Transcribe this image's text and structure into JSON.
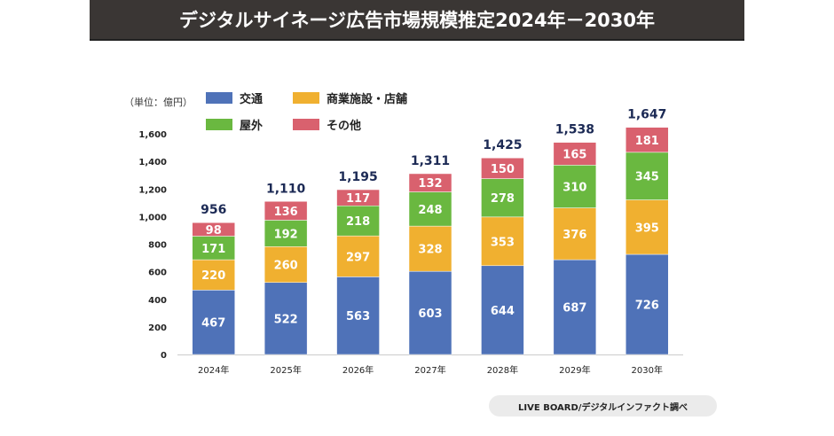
{
  "chart_data": {
    "type": "bar",
    "stacked": true,
    "title": "デジタルサイネージ広告市場規模推定2024年－2030年",
    "unit_label": "（単位：億円）",
    "categories": [
      "2024年",
      "2025年",
      "2026年",
      "2027年",
      "2028年",
      "2029年",
      "2030年"
    ],
    "series": [
      {
        "name": "交通",
        "color": "#4f72b8",
        "values": [
          467,
          522,
          563,
          603,
          644,
          687,
          726
        ]
      },
      {
        "name": "商業施設・店舗",
        "color": "#f0b030",
        "values": [
          220,
          260,
          297,
          328,
          353,
          376,
          395
        ]
      },
      {
        "name": "屋外",
        "color": "#6ab840",
        "values": [
          171,
          192,
          218,
          248,
          278,
          310,
          345
        ]
      },
      {
        "name": "その他",
        "color": "#d9616e",
        "values": [
          98,
          136,
          117,
          132,
          150,
          165,
          181
        ]
      }
    ],
    "totals": [
      "956",
      "1,110",
      "1,195",
      "1,311",
      "1,425",
      "1,538",
      "1,647"
    ],
    "ylim": [
      0,
      1600
    ],
    "yticks": [
      "0",
      "200",
      "400",
      "600",
      "800",
      "1,000",
      "1,200",
      "1,400",
      "1,600"
    ],
    "grid": false,
    "legend_position": "top-left",
    "source": "LIVE BOARD/デジタルインファクト調べ"
  }
}
